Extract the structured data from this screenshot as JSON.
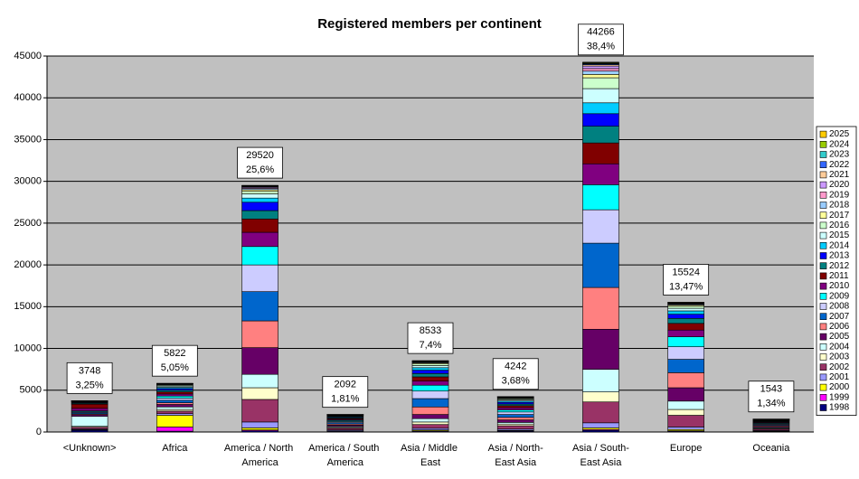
{
  "chart_data": {
    "type": "stacked-bar",
    "title": "Registered members per continent",
    "categories": [
      "<Unknown>",
      "Africa",
      "America / North America",
      "America / South America",
      "Asia / Middle East",
      "Asia / North-East Asia",
      "Asia / South-East Asia",
      "Europe",
      "Oceania"
    ],
    "totals": [
      3748,
      5822,
      29520,
      2092,
      8533,
      4242,
      44266,
      15524,
      1543
    ],
    "share_labels": [
      "3,25%",
      "5,05%",
      "25,6%",
      "1,81%",
      "7,4%",
      "3,68%",
      "38,4%",
      "13,47%",
      "1,34%"
    ],
    "ylim": [
      0,
      45000
    ],
    "yticks": [
      0,
      5000,
      10000,
      15000,
      20000,
      25000,
      30000,
      35000,
      40000,
      45000
    ],
    "grid": true,
    "legend": "right",
    "series": [
      {
        "name": "1998",
        "color": "#000080",
        "values": [
          200,
          100,
          150,
          80,
          100,
          100,
          200,
          100,
          60
        ]
      },
      {
        "name": "1999",
        "color": "#FF00FF",
        "values": [
          30,
          500,
          100,
          20,
          50,
          30,
          100,
          50,
          20
        ]
      },
      {
        "name": "2000",
        "color": "#FFFF00",
        "values": [
          50,
          1400,
          250,
          50,
          100,
          70,
          200,
          150,
          40
        ]
      },
      {
        "name": "2001",
        "color": "#9999FF",
        "values": [
          100,
          200,
          700,
          100,
          200,
          150,
          600,
          300,
          80
        ]
      },
      {
        "name": "2002",
        "color": "#993366",
        "values": [
          200,
          300,
          2700,
          200,
          450,
          400,
          2500,
          1400,
          150
        ]
      },
      {
        "name": "2003",
        "color": "#FFFFCC",
        "values": [
          100,
          200,
          1400,
          100,
          300,
          200,
          1200,
          700,
          80
        ]
      },
      {
        "name": "2004",
        "color": "#CCFFFF",
        "values": [
          1200,
          300,
          1600,
          120,
          400,
          200,
          2700,
          1000,
          100
        ]
      },
      {
        "name": "2005",
        "color": "#660066",
        "values": [
          200,
          300,
          3200,
          150,
          500,
          300,
          4800,
          1600,
          120
        ]
      },
      {
        "name": "2006",
        "color": "#FF8080",
        "values": [
          100,
          200,
          3200,
          150,
          900,
          300,
          5000,
          1800,
          120
        ]
      },
      {
        "name": "2007",
        "color": "#0066CC",
        "values": [
          150,
          300,
          3500,
          150,
          1000,
          350,
          5300,
          1600,
          110
        ]
      },
      {
        "name": "2008",
        "color": "#CCCCFF",
        "values": [
          100,
          250,
          3200,
          130,
          900,
          300,
          4000,
          1500,
          100
        ]
      },
      {
        "name": "2009",
        "color": "#00FFFF",
        "values": [
          100,
          250,
          2200,
          120,
          700,
          250,
          3000,
          1200,
          90
        ]
      },
      {
        "name": "2010",
        "color": "#800080",
        "values": [
          300,
          250,
          1700,
          110,
          500,
          250,
          2500,
          800,
          80
        ]
      },
      {
        "name": "2011",
        "color": "#800000",
        "values": [
          500,
          250,
          1600,
          110,
          500,
          250,
          2500,
          800,
          80
        ]
      },
      {
        "name": "2012",
        "color": "#008080",
        "values": [
          100,
          200,
          1000,
          100,
          400,
          200,
          2000,
          600,
          70
        ]
      },
      {
        "name": "2013",
        "color": "#0000FF",
        "values": [
          80,
          200,
          1000,
          90,
          400,
          200,
          1500,
          500,
          60
        ]
      },
      {
        "name": "2014",
        "color": "#00CCFF",
        "values": [
          60,
          150,
          500,
          80,
          300,
          150,
          1300,
          400,
          50
        ]
      },
      {
        "name": "2015",
        "color": "#CCFFFF",
        "values": [
          50,
          150,
          500,
          70,
          250,
          150,
          1700,
          300,
          40
        ]
      },
      {
        "name": "2016",
        "color": "#CCFFCC",
        "values": [
          40,
          100,
          300,
          50,
          200,
          120,
          1300,
          250,
          30
        ]
      },
      {
        "name": "2017",
        "color": "#FFFF99",
        "values": [
          30,
          70,
          200,
          35,
          120,
          80,
          400,
          150,
          20
        ]
      },
      {
        "name": "2018",
        "color": "#99CCFF",
        "values": [
          20,
          50,
          150,
          25,
          80,
          60,
          400,
          100,
          14
        ]
      },
      {
        "name": "2019",
        "color": "#FF99CC",
        "values": [
          12,
          35,
          100,
          18,
          60,
          45,
          300,
          70,
          10
        ]
      },
      {
        "name": "2020",
        "color": "#CC99FF",
        "values": [
          10,
          25,
          100,
          14,
          50,
          35,
          300,
          60,
          8
        ]
      },
      {
        "name": "2021",
        "color": "#FFCC99",
        "values": [
          6,
          15,
          60,
          8,
          30,
          20,
          150,
          35,
          5
        ]
      },
      {
        "name": "2022",
        "color": "#3366FF",
        "values": [
          4,
          12,
          40,
          6,
          20,
          14,
          100,
          25,
          3
        ]
      },
      {
        "name": "2023",
        "color": "#33CCCC",
        "values": [
          3,
          8,
          30,
          3,
          10,
          9,
          80,
          15,
          1
        ]
      },
      {
        "name": "2024",
        "color": "#99CC00",
        "values": [
          2,
          5,
          25,
          2,
          8,
          6,
          80,
          12,
          1
        ]
      },
      {
        "name": "2025",
        "color": "#FFCC00",
        "values": [
          1,
          2,
          15,
          1,
          5,
          3,
          56,
          7,
          1
        ]
      }
    ]
  }
}
